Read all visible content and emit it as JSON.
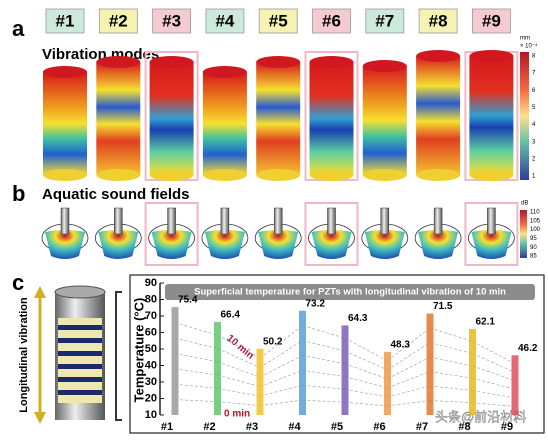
{
  "panel_a": {
    "label": "a",
    "title": "Vibration modes",
    "samples": [
      "#1",
      "#2",
      "#3",
      "#4",
      "#5",
      "#6",
      "#7",
      "#8",
      "#9"
    ],
    "header_colors": [
      "#cde9dd",
      "#f6f2b2",
      "#f5cbd3",
      "#cde9dd",
      "#f6f2b2",
      "#f5cbd3",
      "#cde9dd",
      "#f6f2b2",
      "#f5cbd3"
    ],
    "colorbar": {
      "unit": "mm",
      "scale": "× 10⁻⁴",
      "ticks": [
        8,
        7,
        6,
        5,
        4,
        3,
        2,
        1
      ]
    }
  },
  "panel_b": {
    "label": "b",
    "title": "Aquatic sound fields",
    "colorbar": {
      "unit": "dB",
      "ticks": [
        110,
        105,
        100,
        95,
        90,
        85
      ]
    }
  },
  "panel_c": {
    "label": "c",
    "side_label": "Longitudinal vibration"
  },
  "chart_data": {
    "type": "bar",
    "title": "Superficial temperature for PZTs with longitudinal vibration of 10 min",
    "y_label": "Temperature (°C)",
    "categories": [
      "#1",
      "#2",
      "#3",
      "#4",
      "#5",
      "#6",
      "#7",
      "#8",
      "#9"
    ],
    "values": [
      75.4,
      66.4,
      50.2,
      73.2,
      64.3,
      48.3,
      71.5,
      62.1,
      46.2
    ],
    "colors": [
      "#9a9a9a",
      "#5fc96a",
      "#f2c12e",
      "#5b9fd8",
      "#7a5fb8",
      "#f09a45",
      "#e0782a",
      "#e8b820",
      "#e0505a"
    ],
    "ylim": [
      10,
      90
    ],
    "yticks": [
      10,
      20,
      30,
      40,
      50,
      60,
      70,
      80,
      90
    ],
    "annotations": [
      "10 min",
      "0 min"
    ]
  },
  "watermark": "头条@前沿材料"
}
